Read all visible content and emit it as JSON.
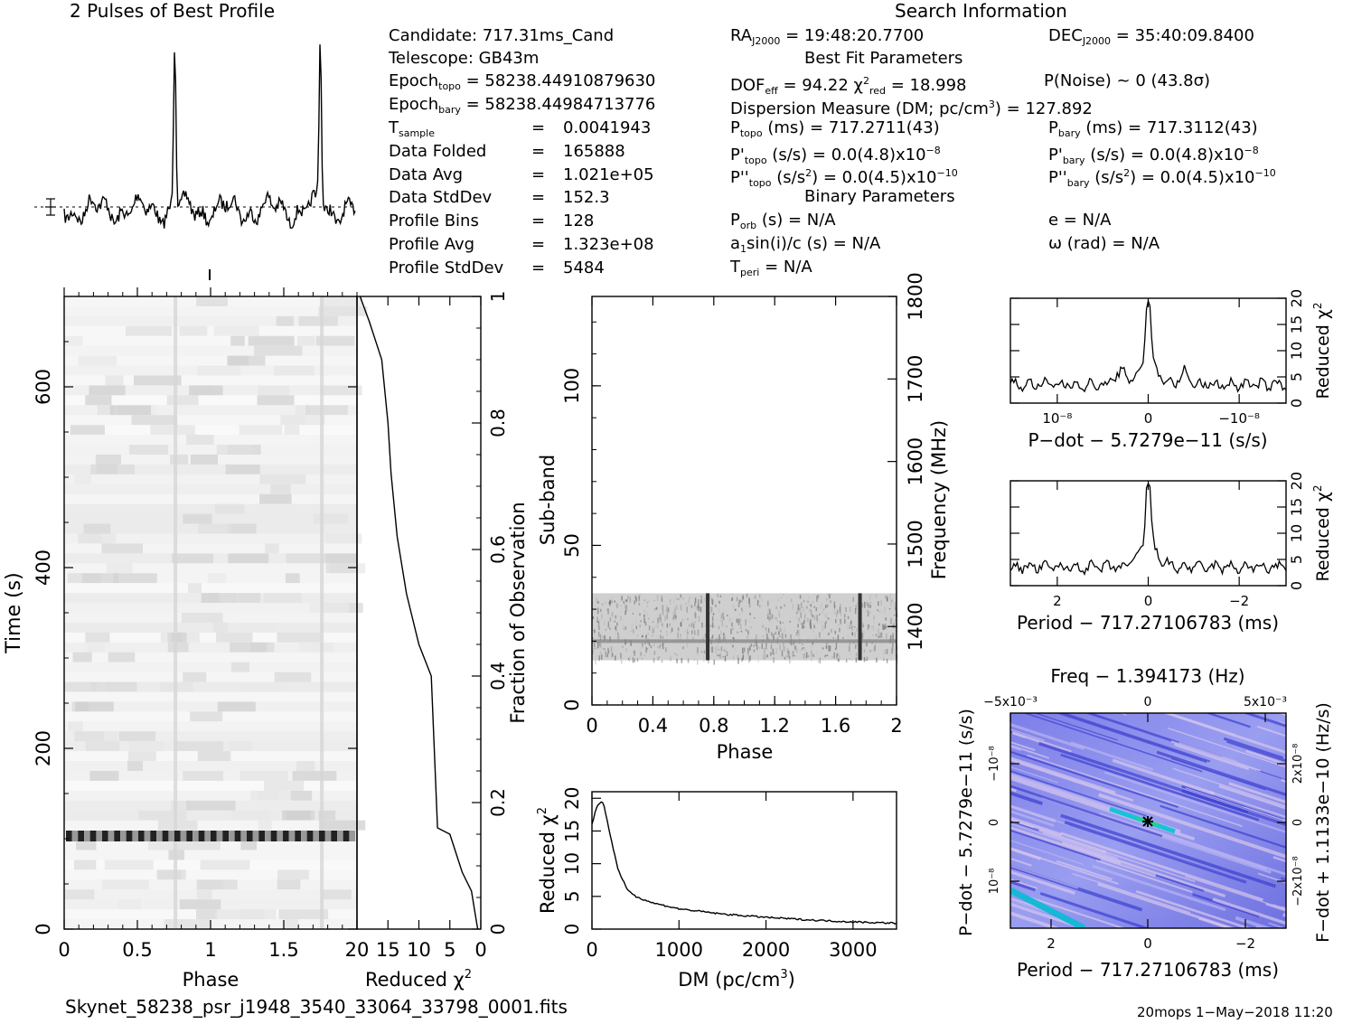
{
  "profile": {
    "title": "2 Pulses of Best Profile"
  },
  "search_info": {
    "title": "Search Information",
    "candidate": "Candidate:  717.31ms_Cand",
    "telescope": "Telescope:  GB43m",
    "epoch_topo": "Epoch",
    "epoch_topo_sub": "topo",
    "epoch_topo_val": " = 58238.44910879630",
    "epoch_bary": "Epoch",
    "epoch_bary_sub": "bary",
    "epoch_bary_val": " = 58238.44984713776",
    "rows": [
      {
        "label": "T",
        "sub": "sample",
        "value": "0.0041943"
      },
      {
        "label": "Data Folded",
        "sub": "",
        "value": "165888"
      },
      {
        "label": "Data Avg",
        "sub": "",
        "value": "1.021e+05"
      },
      {
        "label": "Data StdDev",
        "sub": "",
        "value": "152.3"
      },
      {
        "label": "Profile Bins",
        "sub": "",
        "value": "128"
      },
      {
        "label": "Profile Avg",
        "sub": "",
        "value": "1.323e+08"
      },
      {
        "label": "Profile StdDev",
        "sub": "",
        "value": "5484"
      }
    ],
    "eq": "=",
    "ra": "RA",
    "ra_sub": "J2000",
    "ra_val": " = 19:48:20.7700",
    "dec": "DEC",
    "dec_sub": "J2000",
    "dec_val": " = 35:40:09.8400",
    "best_fit_title": "Best Fit Parameters",
    "dof_prefix": "DOF",
    "dof_sub": "eff",
    "dof_val": " = 94.22  χ",
    "chi_sup": "2",
    "chi_sub": "red",
    "chi_val": " = 18.998",
    "pnoise": "P(Noise) ~ 0   (43.8σ)",
    "dm_line_a": "Dispersion Measure (DM; pc/cm",
    "dm_line_sup": "3",
    "dm_line_b": ") = 127.892",
    "ptopo_a": "P",
    "ptopo_sub": "topo",
    "ptopo_b": " (ms) =  717.2711(43)",
    "pbary_a": "P",
    "pbary_sub": "bary",
    "pbary_b": " (ms) =  717.3112(43)",
    "pdtopo_a": "P'",
    "pdtopo_sub": "topo",
    "pdtopo_b": " (s/s) = 0.0(4.8)x10",
    "pdtopo_sup": "−8",
    "pdbary_a": "P'",
    "pdbary_sub": "bary",
    "pdbary_b": " (s/s) = 0.0(4.8)x10",
    "pdbary_sup": "−8",
    "pddtopo_a": "P''",
    "pddtopo_sub": "topo",
    "pddtopo_b": " (s/s",
    "pddtopo_sup1": "2",
    "pddtopo_c": ") = 0.0(4.5)x10",
    "pddtopo_sup": "−10",
    "pddbary_a": "P''",
    "pddbary_sub": "bary",
    "pddbary_b": " (s/s",
    "pddbary_sup1": "2",
    "pddbary_c": ") = 0.0(4.5)x10",
    "pddbary_sup": "−10",
    "binary_title": "Binary Parameters",
    "porb_a": "P",
    "porb_sub": "orb",
    "porb_b": " (s) = N/A",
    "e": "e = N/A",
    "a1_a": "a",
    "a1_sub": "1",
    "a1_b": "sin(i)/c (s) = N/A",
    "omega": "ω (rad) = N/A",
    "tperi_a": "T",
    "tperi_sub": "peri",
    "tperi_b": " = N/A"
  },
  "footer": {
    "filename": "Skynet_58238_psr_j1948_3540_33064_33798_0001.fits",
    "stamp": "20mops  1−May−2018 11:20"
  },
  "chart_data": [
    {
      "type": "line",
      "title": "2 Pulses of Best Profile",
      "xlabel": "",
      "ylabel": "",
      "x_range": [
        0,
        2
      ],
      "peaks_phase": [
        0.76,
        1.76
      ],
      "notes": "Folded pulse profile shown twice, sharp peaks at phase ~0.76 and ~1.76"
    },
    {
      "type": "heatmap",
      "xlabel": "Phase",
      "ylabel": "Time (s)",
      "xlim": [
        0,
        2
      ],
      "ylim": [
        0,
        700
      ],
      "x_ticks": [
        "0",
        "0.5",
        "1",
        "1.5"
      ],
      "y_ticks": [
        "0",
        "200",
        "400",
        "600"
      ],
      "bright_band_time": 103
    },
    {
      "type": "line",
      "xlabel": "Reduced χ²",
      "ylabel": "Fraction of Observation",
      "xlim": [
        20,
        0
      ],
      "ylim": [
        0,
        1
      ],
      "x_ticks": [
        "20",
        "15",
        "10",
        "5",
        "0"
      ],
      "y_ticks": [
        "0",
        "0.2",
        "0.4",
        "0.6",
        "0.8",
        "1"
      ],
      "x": [
        0.5,
        1,
        1.5,
        3,
        4,
        5,
        6,
        7,
        8,
        10,
        12,
        13.5,
        14.5,
        15,
        16,
        18,
        19.5
      ],
      "y": [
        0,
        0.03,
        0.06,
        0.09,
        0.12,
        0.15,
        0.155,
        0.16,
        0.4,
        0.45,
        0.53,
        0.62,
        0.72,
        0.8,
        0.9,
        0.96,
        1.0
      ]
    },
    {
      "type": "heatmap",
      "xlabel": "Phase",
      "ylabel": "Sub-band",
      "ylabel_right": "Frequency (MHz)",
      "xlim": [
        0,
        2
      ],
      "ylim": [
        0,
        128
      ],
      "x_ticks": [
        "0",
        "0.4",
        "0.8",
        "1.2",
        "1.6",
        "2"
      ],
      "y_ticks": [
        "0",
        "50",
        "100"
      ],
      "y_ticks_right": [
        "1400",
        "1500",
        "1600",
        "1700",
        "1800"
      ],
      "occupied_subbands": [
        14,
        35
      ],
      "pulse_phases": [
        0.76,
        1.76
      ]
    },
    {
      "type": "line",
      "xlabel": "DM (pc/cm³)",
      "ylabel": "Reduced χ²",
      "xlim": [
        0,
        3500
      ],
      "ylim": [
        0,
        21
      ],
      "x_ticks": [
        "0",
        "1000",
        "2000",
        "3000"
      ],
      "y_ticks": [
        "0",
        "5",
        "10",
        "15",
        "20"
      ],
      "x": [
        0,
        60,
        128,
        200,
        300,
        400,
        500,
        700,
        1000,
        1500,
        2000,
        2500,
        3000,
        3500
      ],
      "y": [
        16,
        19,
        19.5,
        15,
        9,
        6.2,
        5,
        4,
        3.1,
        2.3,
        1.8,
        1.4,
        1.1,
        0.9
      ]
    },
    {
      "type": "line",
      "xlabel": "P−dot − 5.7279e−11 (s/s)",
      "ylabel": "Reduced χ²",
      "xlim": [
        1.6e-08,
        -1.6e-08
      ],
      "ylim": [
        0,
        20
      ],
      "x_ticks": [
        "10⁻⁸",
        "0",
        "−10⁻⁸"
      ],
      "y_ticks": [
        "0",
        "5",
        "10",
        "15",
        "20"
      ],
      "peak": 19
    },
    {
      "type": "line",
      "xlabel": "Period − 717.27106783 (ms)",
      "ylabel": "Reduced χ²",
      "xlim": [
        3,
        -3
      ],
      "ylim": [
        0,
        20
      ],
      "x_ticks": [
        "2",
        "0",
        "−2"
      ],
      "y_ticks": [
        "0",
        "5",
        "10",
        "15",
        "20"
      ],
      "peak": 19
    },
    {
      "type": "heatmap",
      "title": "Freq − 1.394173 (Hz)",
      "xlabel": "Period − 717.27106783 (ms)",
      "ylabel": "P−dot − 5.7279e−11 (s/s)",
      "ylabel_right": "F−dot + 1.1133e−10 (Hz/s)",
      "x_ticks": [
        "2",
        "0",
        "−2"
      ],
      "x_ticks_top": [
        "−5x10⁻³",
        "0",
        "5x10⁻³"
      ],
      "y_ticks": [
        "10⁻⁸",
        "0",
        "−10⁻⁸"
      ],
      "y_ticks_right": [
        "−2x10⁻⁸",
        "0",
        "2x10⁻⁸"
      ]
    }
  ]
}
